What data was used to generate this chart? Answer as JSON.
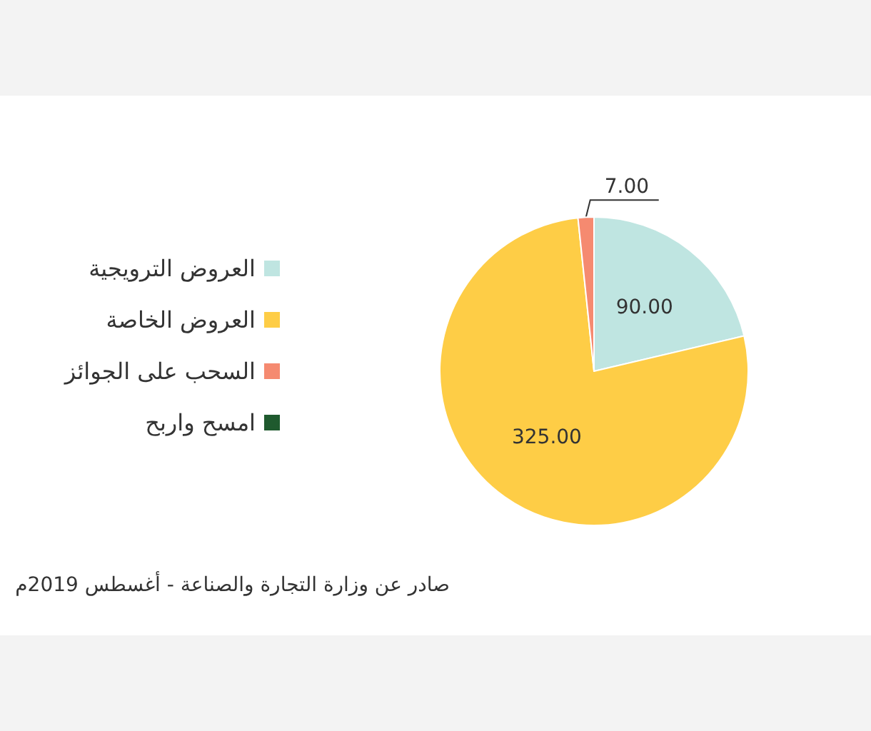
{
  "chart_data": {
    "type": "pie",
    "categories": [
      "العروض الترويجية",
      "العروض الخاصة",
      "السحب على الجوائز",
      "امسح واربح"
    ],
    "values": [
      90,
      325,
      7,
      null
    ],
    "colors": [
      "#bfe5e1",
      "#fecd46",
      "#f58a70",
      "#1f5a2e"
    ],
    "value_labels": [
      "90.00",
      "325.00",
      "7.00",
      null
    ],
    "legend": "left",
    "annotations": [
      "صادر عن وزارة التجارة والصناعة - أغسطس 2019م"
    ]
  }
}
